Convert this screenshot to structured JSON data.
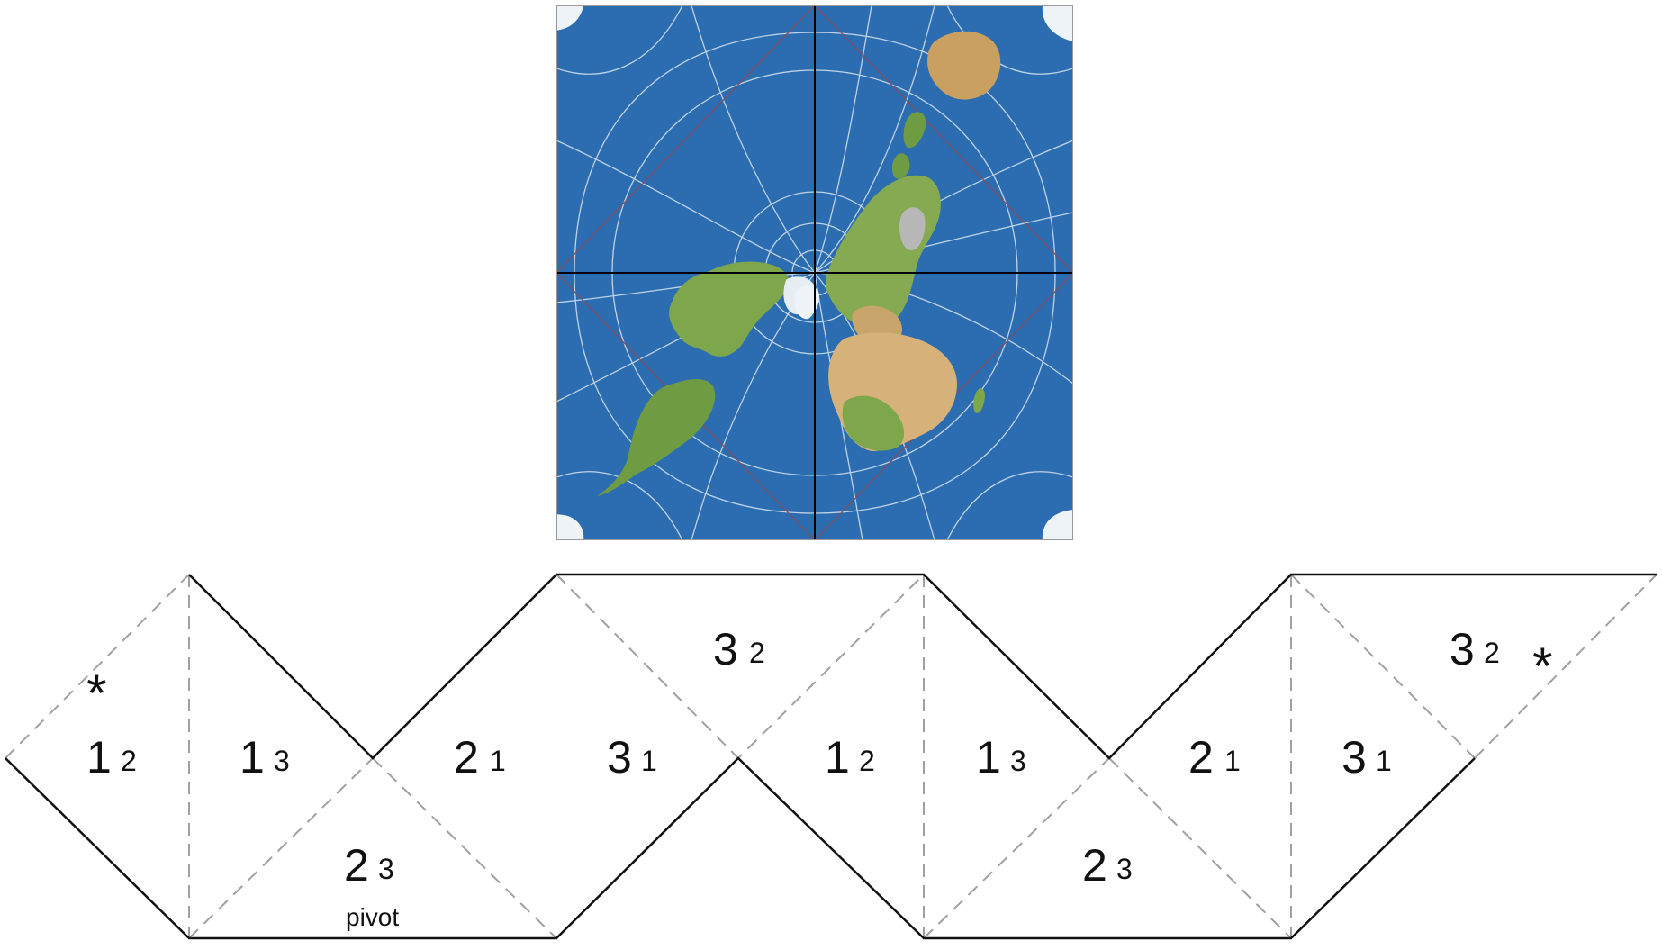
{
  "map": {
    "ocean_color": "#2b6db0",
    "land_color": "#7ea64a",
    "desert_color": "#d8b47a",
    "ice_color": "#eef3f8",
    "graticule_color": "#d9e4f0",
    "axis_color": "#000000",
    "diagonal_color": "#8a4a5a"
  },
  "net": {
    "outline_color": "#111111",
    "fold_color": "#a0a0a0",
    "faces": [
      {
        "id": "f1",
        "num": "1",
        "sub": "2"
      },
      {
        "id": "f2",
        "num": "1",
        "sub": "3"
      },
      {
        "id": "f3",
        "num": "2",
        "sub": "3"
      },
      {
        "id": "f4",
        "num": "2",
        "sub": "1"
      },
      {
        "id": "f5",
        "num": "3",
        "sub": "1"
      },
      {
        "id": "f6",
        "num": "3",
        "sub": "2"
      },
      {
        "id": "f7",
        "num": "1",
        "sub": "2"
      },
      {
        "id": "f8",
        "num": "1",
        "sub": "3"
      },
      {
        "id": "f9",
        "num": "2",
        "sub": "3"
      },
      {
        "id": "f10",
        "num": "2",
        "sub": "1"
      },
      {
        "id": "f11",
        "num": "3",
        "sub": "1"
      },
      {
        "id": "f12",
        "num": "3",
        "sub": "2"
      }
    ],
    "star_symbol": "*",
    "pivot_label": "pivot"
  }
}
